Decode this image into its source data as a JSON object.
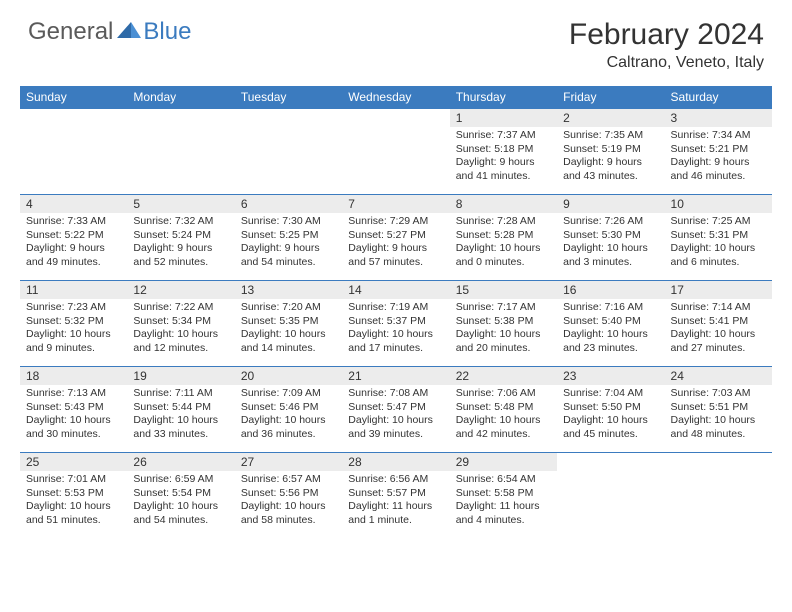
{
  "brand": {
    "part1": "General",
    "part2": "Blue"
  },
  "title": "February 2024",
  "location": "Caltrano, Veneto, Italy",
  "styling": {
    "header_bg": "#3b7bbf",
    "header_text": "#ffffff",
    "date_bg": "#ececec",
    "border_color": "#3b7bbf",
    "body_text": "#333333",
    "font_family": "Arial",
    "title_fontsize": 30,
    "location_fontsize": 16,
    "dayheader_fontsize": 12,
    "cell_fontsize": 10.5
  },
  "day_names": [
    "Sunday",
    "Monday",
    "Tuesday",
    "Wednesday",
    "Thursday",
    "Friday",
    "Saturday"
  ],
  "weeks": [
    [
      null,
      null,
      null,
      null,
      {
        "n": "1",
        "sr": "7:37 AM",
        "ss": "5:18 PM",
        "dl": "9 hours and 41 minutes."
      },
      {
        "n": "2",
        "sr": "7:35 AM",
        "ss": "5:19 PM",
        "dl": "9 hours and 43 minutes."
      },
      {
        "n": "3",
        "sr": "7:34 AM",
        "ss": "5:21 PM",
        "dl": "9 hours and 46 minutes."
      }
    ],
    [
      {
        "n": "4",
        "sr": "7:33 AM",
        "ss": "5:22 PM",
        "dl": "9 hours and 49 minutes."
      },
      {
        "n": "5",
        "sr": "7:32 AM",
        "ss": "5:24 PM",
        "dl": "9 hours and 52 minutes."
      },
      {
        "n": "6",
        "sr": "7:30 AM",
        "ss": "5:25 PM",
        "dl": "9 hours and 54 minutes."
      },
      {
        "n": "7",
        "sr": "7:29 AM",
        "ss": "5:27 PM",
        "dl": "9 hours and 57 minutes."
      },
      {
        "n": "8",
        "sr": "7:28 AM",
        "ss": "5:28 PM",
        "dl": "10 hours and 0 minutes."
      },
      {
        "n": "9",
        "sr": "7:26 AM",
        "ss": "5:30 PM",
        "dl": "10 hours and 3 minutes."
      },
      {
        "n": "10",
        "sr": "7:25 AM",
        "ss": "5:31 PM",
        "dl": "10 hours and 6 minutes."
      }
    ],
    [
      {
        "n": "11",
        "sr": "7:23 AM",
        "ss": "5:32 PM",
        "dl": "10 hours and 9 minutes."
      },
      {
        "n": "12",
        "sr": "7:22 AM",
        "ss": "5:34 PM",
        "dl": "10 hours and 12 minutes."
      },
      {
        "n": "13",
        "sr": "7:20 AM",
        "ss": "5:35 PM",
        "dl": "10 hours and 14 minutes."
      },
      {
        "n": "14",
        "sr": "7:19 AM",
        "ss": "5:37 PM",
        "dl": "10 hours and 17 minutes."
      },
      {
        "n": "15",
        "sr": "7:17 AM",
        "ss": "5:38 PM",
        "dl": "10 hours and 20 minutes."
      },
      {
        "n": "16",
        "sr": "7:16 AM",
        "ss": "5:40 PM",
        "dl": "10 hours and 23 minutes."
      },
      {
        "n": "17",
        "sr": "7:14 AM",
        "ss": "5:41 PM",
        "dl": "10 hours and 27 minutes."
      }
    ],
    [
      {
        "n": "18",
        "sr": "7:13 AM",
        "ss": "5:43 PM",
        "dl": "10 hours and 30 minutes."
      },
      {
        "n": "19",
        "sr": "7:11 AM",
        "ss": "5:44 PM",
        "dl": "10 hours and 33 minutes."
      },
      {
        "n": "20",
        "sr": "7:09 AM",
        "ss": "5:46 PM",
        "dl": "10 hours and 36 minutes."
      },
      {
        "n": "21",
        "sr": "7:08 AM",
        "ss": "5:47 PM",
        "dl": "10 hours and 39 minutes."
      },
      {
        "n": "22",
        "sr": "7:06 AM",
        "ss": "5:48 PM",
        "dl": "10 hours and 42 minutes."
      },
      {
        "n": "23",
        "sr": "7:04 AM",
        "ss": "5:50 PM",
        "dl": "10 hours and 45 minutes."
      },
      {
        "n": "24",
        "sr": "7:03 AM",
        "ss": "5:51 PM",
        "dl": "10 hours and 48 minutes."
      }
    ],
    [
      {
        "n": "25",
        "sr": "7:01 AM",
        "ss": "5:53 PM",
        "dl": "10 hours and 51 minutes."
      },
      {
        "n": "26",
        "sr": "6:59 AM",
        "ss": "5:54 PM",
        "dl": "10 hours and 54 minutes."
      },
      {
        "n": "27",
        "sr": "6:57 AM",
        "ss": "5:56 PM",
        "dl": "10 hours and 58 minutes."
      },
      {
        "n": "28",
        "sr": "6:56 AM",
        "ss": "5:57 PM",
        "dl": "11 hours and 1 minute."
      },
      {
        "n": "29",
        "sr": "6:54 AM",
        "ss": "5:58 PM",
        "dl": "11 hours and 4 minutes."
      },
      null,
      null
    ]
  ],
  "labels": {
    "sunrise": "Sunrise:",
    "sunset": "Sunset:",
    "daylight": "Daylight:"
  }
}
